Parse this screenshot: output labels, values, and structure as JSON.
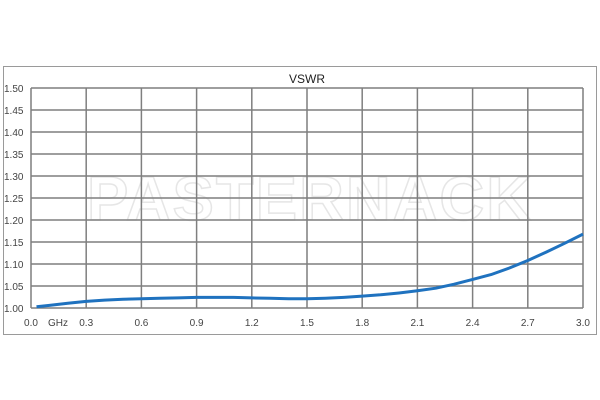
{
  "chart_data": {
    "type": "line",
    "title": "VSWR",
    "xlabel": "GHz",
    "ylabel": "",
    "xlim": [
      0.0,
      3.0
    ],
    "ylim": [
      1.0,
      1.5
    ],
    "x_ticks": [
      "0.0",
      "0.3",
      "0.6",
      "0.9",
      "1.2",
      "1.5",
      "1.8",
      "2.1",
      "2.4",
      "2.7",
      "3.0"
    ],
    "y_ticks": [
      "1.00",
      "1.05",
      "1.10",
      "1.15",
      "1.20",
      "1.25",
      "1.30",
      "1.35",
      "1.40",
      "1.45",
      "1.50"
    ],
    "grid": true,
    "line_color": "#1f72bf",
    "watermark": "PASTERNACK",
    "series": [
      {
        "x": [
          0.03,
          0.1,
          0.2,
          0.3,
          0.4,
          0.5,
          0.6,
          0.7,
          0.8,
          0.9,
          1.0,
          1.1,
          1.2,
          1.3,
          1.4,
          1.5,
          1.6,
          1.7,
          1.8,
          1.9,
          2.0,
          2.1,
          2.2,
          2.3,
          2.4,
          2.5,
          2.6,
          2.7,
          2.8,
          2.9,
          3.0
        ],
        "y": [
          1.003,
          1.006,
          1.011,
          1.015,
          1.018,
          1.02,
          1.021,
          1.022,
          1.023,
          1.024,
          1.024,
          1.024,
          1.023,
          1.022,
          1.021,
          1.021,
          1.022,
          1.024,
          1.027,
          1.03,
          1.034,
          1.039,
          1.045,
          1.054,
          1.065,
          1.076,
          1.091,
          1.108,
          1.127,
          1.147,
          1.168
        ]
      }
    ]
  }
}
